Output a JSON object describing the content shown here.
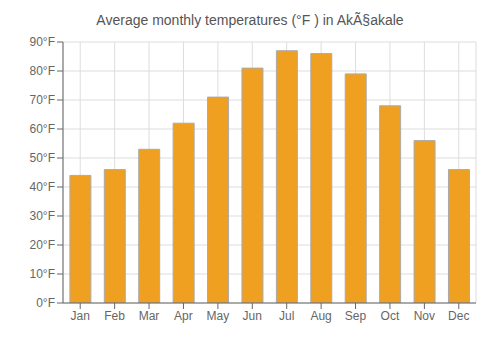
{
  "chart_data": {
    "type": "bar",
    "title": "Average monthly temperatures (°F ) in AkÃ§akale",
    "categories": [
      "Jan",
      "Feb",
      "Mar",
      "Apr",
      "May",
      "Jun",
      "Jul",
      "Aug",
      "Sep",
      "Oct",
      "Nov",
      "Dec"
    ],
    "values": [
      44,
      46,
      53,
      62,
      71,
      81,
      87,
      86,
      79,
      68,
      56,
      46
    ],
    "color": "#F0A020",
    "ylim": [
      0,
      90
    ],
    "yticks": [
      {
        "value": 0,
        "label": "0°F"
      },
      {
        "value": 10,
        "label": "10°F"
      },
      {
        "value": 20,
        "label": "20°F"
      },
      {
        "value": 30,
        "label": "30°F"
      },
      {
        "value": 40,
        "label": "40°F"
      },
      {
        "value": 50,
        "label": "50°F"
      },
      {
        "value": 60,
        "label": "60°F"
      },
      {
        "value": 70,
        "label": "70°F"
      },
      {
        "value": 80,
        "label": "80°F"
      },
      {
        "value": 90,
        "label": "90°F"
      }
    ],
    "grid": true
  }
}
